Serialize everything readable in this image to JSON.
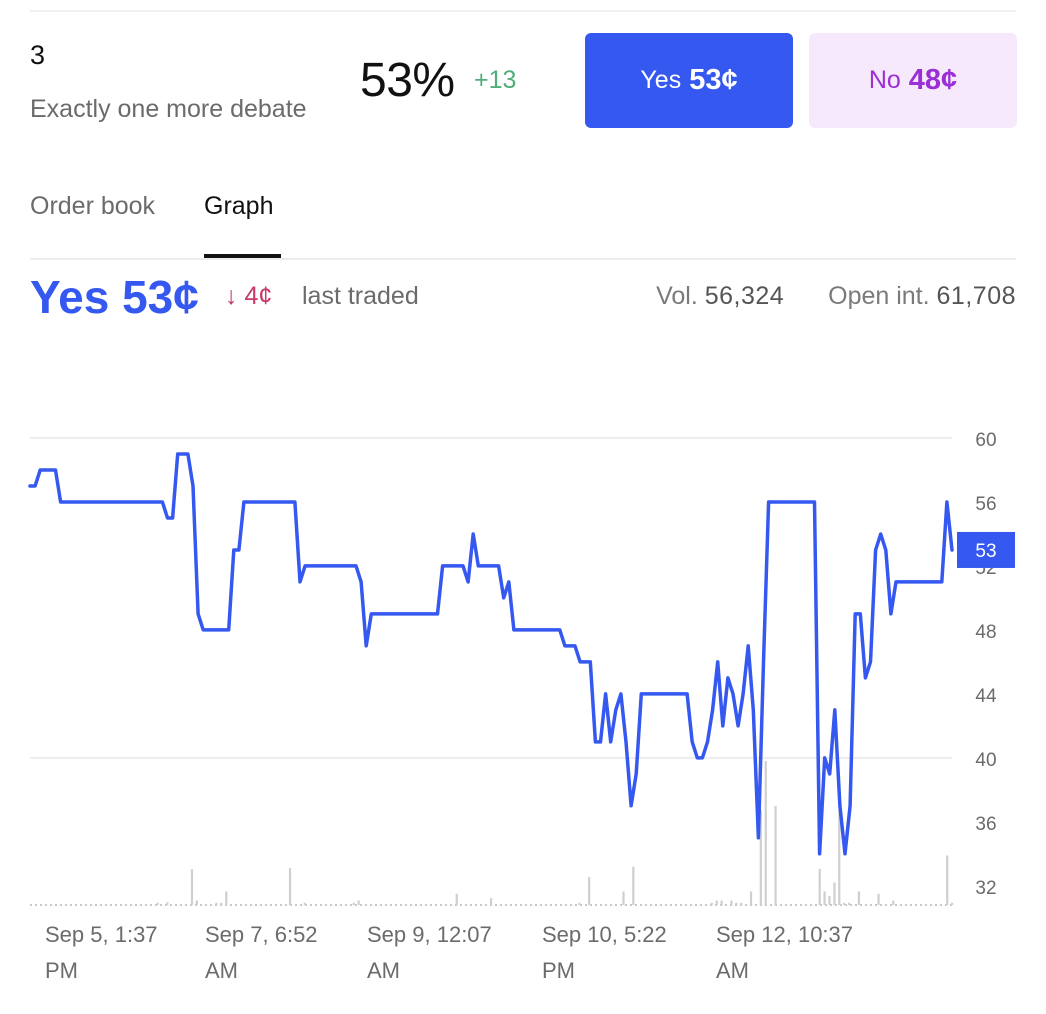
{
  "market": {
    "outcome_number": "3",
    "outcome_title": "Exactly one more debate",
    "chance": "53%",
    "chance_change": "+13"
  },
  "buttons": {
    "yes_label": "Yes",
    "yes_price": "53¢",
    "no_label": "No",
    "no_price": "48¢"
  },
  "tabs": [
    {
      "label": "Order book",
      "active": false
    },
    {
      "label": "Graph",
      "active": true
    }
  ],
  "summary": {
    "price_label": "Yes 53¢",
    "change": "↓ 4¢",
    "last_traded": "last traded",
    "vol_label": "Vol.",
    "vol_value": "56,324",
    "open_int_label": "Open int.",
    "open_int_value": "61,708"
  },
  "colors": {
    "accent": "#3558f0",
    "no_bg": "#f6e9fb",
    "no_text": "#9a2fd6",
    "positive": "#4fae7a",
    "negative": "#c8386a",
    "volume_bar": "#cfcfcf",
    "grid": "#eeeeee"
  },
  "chart_data": {
    "type": "line",
    "title": "",
    "xlabel": "",
    "ylabel": "",
    "ylim": [
      30.8,
      60
    ],
    "yticks": [
      32,
      36,
      40,
      44,
      48,
      52,
      56,
      60
    ],
    "x_tick_labels": [
      [
        "Sep 5, 1:37",
        "PM"
      ],
      [
        "Sep 7, 6:52",
        "AM"
      ],
      [
        "Sep 9, 12:07",
        "AM"
      ],
      [
        "Sep 10, 5:22",
        "PM"
      ],
      [
        "Sep 12, 10:37",
        "AM"
      ]
    ],
    "current_value_label": "53",
    "series": [
      {
        "values": [
          57,
          57,
          58,
          58,
          58,
          58,
          56,
          56,
          56,
          56,
          56,
          56,
          56,
          56,
          56,
          56,
          56,
          56,
          56,
          56,
          56,
          56,
          56,
          56,
          56,
          56,
          56,
          55,
          55,
          59,
          59,
          59,
          57,
          49,
          48,
          48,
          48,
          48,
          48,
          48,
          53,
          53,
          56,
          56,
          56,
          56,
          56,
          56,
          56,
          56,
          56,
          56,
          56,
          51,
          52,
          52,
          52,
          52,
          52,
          52,
          52,
          52,
          52,
          52,
          52,
          51,
          47,
          49,
          49,
          49,
          49,
          49,
          49,
          49,
          49,
          49,
          49,
          49,
          49,
          49,
          49,
          52,
          52,
          52,
          52,
          52,
          51,
          54,
          52,
          52,
          52,
          52,
          52,
          50,
          51,
          48,
          48,
          48,
          48,
          48,
          48,
          48,
          48,
          48,
          48,
          47,
          47,
          47,
          46,
          46,
          46,
          41,
          41,
          44,
          41,
          43,
          44,
          41,
          37,
          39,
          44,
          44,
          44,
          44,
          44,
          44,
          44,
          44,
          44,
          44,
          41,
          40,
          40,
          41,
          43,
          46,
          42,
          45,
          44,
          42,
          44,
          47,
          43,
          35,
          46,
          56,
          56,
          56,
          56,
          56,
          56,
          56,
          56,
          56,
          56,
          34,
          40,
          39,
          43,
          37,
          34,
          37,
          49,
          49,
          45,
          46,
          53,
          54,
          53,
          49,
          51,
          51,
          51,
          51,
          51,
          51,
          51,
          51,
          51,
          51,
          56,
          53
        ]
      }
    ],
    "volume": [
      0,
      0,
      0,
      0,
      0,
      0,
      0,
      0,
      0,
      0,
      0,
      0,
      0,
      0,
      0,
      0,
      0,
      0,
      0,
      0,
      0,
      0,
      0,
      0,
      0,
      0,
      0.05,
      0,
      0.06,
      0,
      0,
      0,
      0,
      0.8,
      0.1,
      0,
      0,
      0,
      0.05,
      0.05,
      0.3,
      0,
      0,
      0,
      0,
      0,
      0,
      0,
      0,
      0,
      0,
      0,
      0,
      0.82,
      0,
      0,
      0.05,
      0,
      0,
      0,
      0,
      0,
      0,
      0,
      0,
      0,
      0.05,
      0.1,
      0,
      0,
      0,
      0,
      0,
      0,
      0,
      0,
      0,
      0,
      0,
      0,
      0,
      0,
      0,
      0,
      0,
      0,
      0,
      0.25,
      0,
      0,
      0,
      0,
      0,
      0,
      0.15,
      0,
      0,
      0,
      0,
      0,
      0,
      0,
      0,
      0,
      0,
      0,
      0,
      0,
      0,
      0,
      0,
      0,
      0.05,
      0,
      0.62,
      0,
      0,
      0,
      0,
      0,
      0,
      0.3,
      0,
      0.85,
      0,
      0,
      0,
      0,
      0,
      0,
      0,
      0,
      0,
      0,
      0,
      0,
      0,
      0,
      0,
      0.05,
      0.1,
      0.1,
      0,
      0.1,
      0.05,
      0.05,
      0,
      0.3,
      0,
      2.1,
      3.2,
      0,
      2.2,
      0,
      0,
      0,
      0,
      0,
      0,
      0,
      0,
      0.8,
      0.3,
      0.2,
      0.5,
      2.1,
      0.05,
      0.05,
      0,
      0.3,
      0,
      0,
      0,
      0.25,
      0,
      0,
      0.1,
      0,
      0,
      0,
      0,
      0,
      0,
      0,
      0,
      0,
      0.0,
      1.1,
      0.05
    ]
  }
}
